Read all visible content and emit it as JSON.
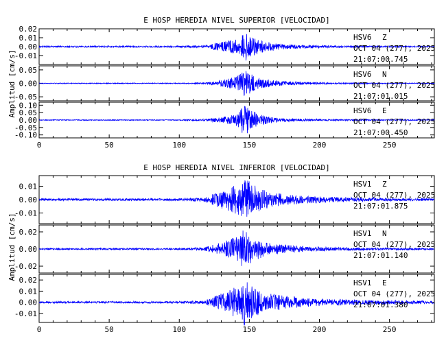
{
  "chart_data": [
    {
      "type": "line",
      "title": "E HOSP HEREDIA NIVEL SUPERIOR [VELOCIDAD]",
      "ylabel": "Amplitud [cm/s]",
      "xlim": [
        0,
        282
      ],
      "xticks": [
        "0",
        "50",
        "100",
        "150",
        "200",
        "250"
      ],
      "xtick_values": [
        0,
        50,
        100,
        150,
        200,
        250
      ],
      "line_color": "#0000ff",
      "panels": [
        {
          "station": "HSV6",
          "component": "Z",
          "date": "OCT 04 (277), 2025",
          "time": "21:07:00.745",
          "ylim": [
            -0.02,
            0.02
          ],
          "yticks": [
            "0.02",
            "0.01",
            "0.00",
            "-0.01"
          ],
          "ytick_values": [
            0.02,
            0.01,
            0.0,
            -0.01
          ],
          "noise": 0.0009,
          "peak": 0.017,
          "envelope": [
            [
              0,
              0.0008
            ],
            [
              100,
              0.0009
            ],
            [
              118,
              0.0015
            ],
            [
              126,
              0.004
            ],
            [
              136,
              0.007
            ],
            [
              142,
              0.009
            ],
            [
              147,
              0.017
            ],
            [
              151,
              0.012
            ],
            [
              157,
              0.008
            ],
            [
              165,
              0.005
            ],
            [
              175,
              0.003
            ],
            [
              190,
              0.0018
            ],
            [
              210,
              0.0012
            ],
            [
              240,
              0.0008
            ],
            [
              282,
              0.0007
            ]
          ]
        },
        {
          "station": "HSV6",
          "component": "N",
          "date": "OCT 04 (277), 2025",
          "time": "21:07:01.015",
          "ylim": [
            -0.065,
            0.065
          ],
          "yticks": [
            "0.05",
            "0.00",
            "-0.05"
          ],
          "ytick_values": [
            0.05,
            0.0,
            -0.05
          ],
          "noise": 0.0015,
          "peak": 0.055,
          "envelope": [
            [
              0,
              0.0015
            ],
            [
              100,
              0.0016
            ],
            [
              118,
              0.003
            ],
            [
              126,
              0.008
            ],
            [
              136,
              0.018
            ],
            [
              142,
              0.03
            ],
            [
              147,
              0.055
            ],
            [
              151,
              0.035
            ],
            [
              157,
              0.022
            ],
            [
              165,
              0.013
            ],
            [
              175,
              0.008
            ],
            [
              190,
              0.005
            ],
            [
              210,
              0.003
            ],
            [
              240,
              0.002
            ],
            [
              282,
              0.0015
            ]
          ]
        },
        {
          "station": "HSV6",
          "component": "E",
          "date": "OCT 04 (277), 2025",
          "time": "21:07:00.450",
          "ylim": [
            -0.12,
            0.12
          ],
          "yticks": [
            "0.10",
            "0.05",
            "0.00",
            "-0.05",
            "-0.10"
          ],
          "ytick_values": [
            0.1,
            0.05,
            0.0,
            -0.05,
            -0.1
          ],
          "noise": 0.003,
          "peak": 0.11,
          "envelope": [
            [
              0,
              0.003
            ],
            [
              100,
              0.003
            ],
            [
              118,
              0.006
            ],
            [
              126,
              0.015
            ],
            [
              136,
              0.03
            ],
            [
              142,
              0.055
            ],
            [
              147,
              0.11
            ],
            [
              151,
              0.07
            ],
            [
              157,
              0.04
            ],
            [
              165,
              0.022
            ],
            [
              175,
              0.012
            ],
            [
              190,
              0.008
            ],
            [
              210,
              0.005
            ],
            [
              240,
              0.004
            ],
            [
              282,
              0.003
            ]
          ]
        }
      ]
    },
    {
      "type": "line",
      "title": "E HOSP HEREDIA NIVEL INFERIOR [VELOCIDAD]",
      "ylabel": "Amplitud [cm/s]",
      "xlim": [
        0,
        282
      ],
      "xticks": [
        "0",
        "50",
        "100",
        "150",
        "200",
        "250"
      ],
      "xtick_values": [
        0,
        50,
        100,
        150,
        200,
        250
      ],
      "line_color": "#0000ff",
      "panels": [
        {
          "station": "HSV1",
          "component": "Z",
          "date": "OCT 04 (277), 2025",
          "time": "21:07:01.875",
          "ylim": [
            -0.018,
            0.018
          ],
          "yticks": [
            "0.01",
            "0.00",
            "-0.01"
          ],
          "ytick_values": [
            0.01,
            0.0,
            -0.01
          ],
          "noise": 0.0008,
          "peak": 0.016,
          "envelope": [
            [
              0,
              0.0008
            ],
            [
              100,
              0.0009
            ],
            [
              118,
              0.0015
            ],
            [
              126,
              0.005
            ],
            [
              136,
              0.009
            ],
            [
              142,
              0.012
            ],
            [
              147,
              0.016
            ],
            [
              151,
              0.013
            ],
            [
              157,
              0.009
            ],
            [
              165,
              0.006
            ],
            [
              175,
              0.004
            ],
            [
              190,
              0.003
            ],
            [
              210,
              0.002
            ],
            [
              240,
              0.0012
            ],
            [
              282,
              0.0009
            ]
          ]
        },
        {
          "station": "HSV1",
          "component": "N",
          "date": "OCT 04 (277), 2025",
          "time": "21:07:01.140",
          "ylim": [
            -0.028,
            0.028
          ],
          "yticks": [
            "0.02",
            "0.00",
            "-0.02"
          ],
          "ytick_values": [
            0.02,
            0.0,
            -0.02
          ],
          "noise": 0.0009,
          "peak": 0.024,
          "envelope": [
            [
              0,
              0.0009
            ],
            [
              100,
              0.001
            ],
            [
              118,
              0.002
            ],
            [
              126,
              0.006
            ],
            [
              136,
              0.011
            ],
            [
              142,
              0.016
            ],
            [
              147,
              0.024
            ],
            [
              151,
              0.017
            ],
            [
              157,
              0.011
            ],
            [
              165,
              0.007
            ],
            [
              175,
              0.005
            ],
            [
              190,
              0.003
            ],
            [
              210,
              0.002
            ],
            [
              240,
              0.0013
            ],
            [
              282,
              0.001
            ]
          ]
        },
        {
          "station": "HSV1",
          "component": "E",
          "date": "OCT 04 (277), 2025",
          "time": "21:07:01.380",
          "ylim": [
            -0.018,
            0.025
          ],
          "yticks": [
            "0.02",
            "0.01",
            "0.00",
            "-0.01"
          ],
          "ytick_values": [
            0.02,
            0.01,
            0.0,
            -0.01
          ],
          "noise": 0.0008,
          "peak": 0.022,
          "envelope": [
            [
              0,
              0.0008
            ],
            [
              100,
              0.0009
            ],
            [
              118,
              0.0015
            ],
            [
              126,
              0.006
            ],
            [
              136,
              0.011
            ],
            [
              142,
              0.015
            ],
            [
              147,
              0.022
            ],
            [
              151,
              0.015
            ],
            [
              157,
              0.011
            ],
            [
              165,
              0.008
            ],
            [
              175,
              0.006
            ],
            [
              190,
              0.004
            ],
            [
              210,
              0.003
            ],
            [
              240,
              0.002
            ],
            [
              282,
              0.0012
            ]
          ]
        }
      ]
    }
  ]
}
